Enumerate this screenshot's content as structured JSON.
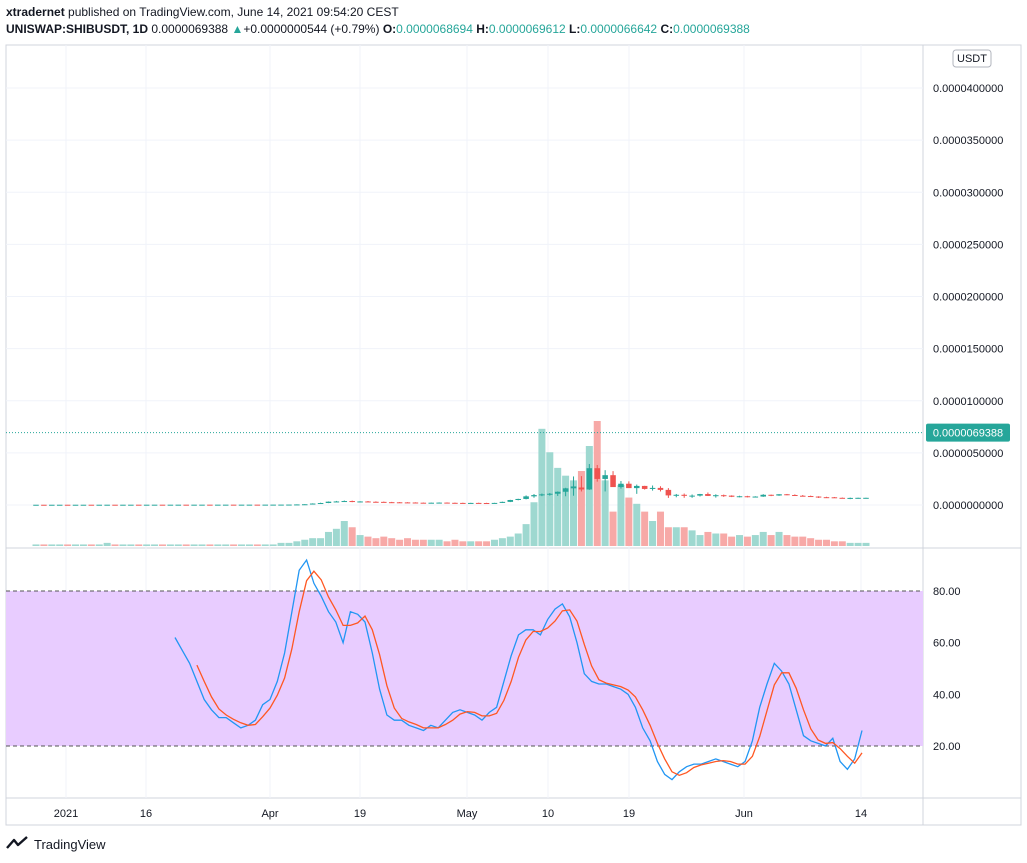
{
  "header": {
    "line1_author": "xtradernet",
    "line1_rest": " published on TradingView.com, June 14, 2021 09:54:20 CEST",
    "symbol": "UNISWAP:SHIBUSDT, 1D",
    "last": "0.0000069388",
    "change": "+0.0000000544 (+0.79%)",
    "o_label": "O:",
    "o": "0.0000068694",
    "h_label": "H:",
    "h": "0.0000069612",
    "l_label": "L:",
    "l": "0.0000066642",
    "c_label": "C:",
    "c": "0.0000069388"
  },
  "currency_badge": "USDT",
  "last_price_tag": "0.0000069388",
  "brand": "TradingView",
  "colors": {
    "up": "#26a69a",
    "down": "#ef5350",
    "vol_up": "#9ed8d0",
    "vol_down": "#f7a9a7",
    "rsi": "#2196f3",
    "signal": "#ff5722",
    "band": "#e8ccff"
  },
  "chart_data": [
    {
      "type": "candlestick",
      "title": "UNISWAP:SHIBUSDT, 1D",
      "y_ticks": [
        "0.0000400000",
        "0.0000350000",
        "0.0000300000",
        "0.0000250000",
        "0.0000200000",
        "0.0000150000",
        "0.0000100000",
        "0.0000050000",
        "0.0000000000"
      ],
      "ylim": [
        0,
        4e-05
      ],
      "x_ticks": [
        "2021",
        "16",
        "Apr",
        "19",
        "May",
        "10",
        "19",
        "Jun",
        "14"
      ],
      "candles_ohlc_e8": [
        [
          0.24,
          0.26,
          0.22,
          0.25
        ],
        [
          0.25,
          0.26,
          0.23,
          0.24
        ],
        [
          0.24,
          0.26,
          0.23,
          0.25
        ],
        [
          0.25,
          0.27,
          0.24,
          0.26
        ],
        [
          0.26,
          0.27,
          0.24,
          0.25
        ],
        [
          0.25,
          0.27,
          0.24,
          0.26
        ],
        [
          0.26,
          0.28,
          0.25,
          0.27
        ],
        [
          0.27,
          0.28,
          0.25,
          0.26
        ],
        [
          0.26,
          0.28,
          0.25,
          0.27
        ],
        [
          0.27,
          0.29,
          0.26,
          0.28
        ],
        [
          0.28,
          0.29,
          0.26,
          0.27
        ],
        [
          0.27,
          0.29,
          0.26,
          0.28
        ],
        [
          0.28,
          0.3,
          0.27,
          0.29
        ],
        [
          0.29,
          0.3,
          0.27,
          0.28
        ],
        [
          0.28,
          0.3,
          0.27,
          0.29
        ],
        [
          0.29,
          0.31,
          0.28,
          0.3
        ],
        [
          0.3,
          0.31,
          0.28,
          0.29
        ],
        [
          0.29,
          0.31,
          0.28,
          0.3
        ],
        [
          0.3,
          0.32,
          0.29,
          0.31
        ],
        [
          0.31,
          0.32,
          0.29,
          0.3
        ],
        [
          0.3,
          0.32,
          0.29,
          0.31
        ],
        [
          0.31,
          0.33,
          0.3,
          0.32
        ],
        [
          0.32,
          0.33,
          0.3,
          0.31
        ],
        [
          0.31,
          0.33,
          0.3,
          0.32
        ],
        [
          0.32,
          0.34,
          0.31,
          0.33
        ],
        [
          0.33,
          0.34,
          0.31,
          0.32
        ],
        [
          0.32,
          0.34,
          0.31,
          0.33
        ],
        [
          0.33,
          0.35,
          0.32,
          0.34
        ],
        [
          0.34,
          0.35,
          0.32,
          0.33
        ],
        [
          0.33,
          0.36,
          0.32,
          0.35
        ],
        [
          0.35,
          0.38,
          0.34,
          0.36
        ],
        [
          0.36,
          0.4,
          0.34,
          0.38
        ],
        [
          0.38,
          0.45,
          0.36,
          0.42
        ],
        [
          0.42,
          0.6,
          0.4,
          0.55
        ],
        [
          0.55,
          0.75,
          0.5,
          0.72
        ],
        [
          0.72,
          1.6,
          0.7,
          1.4
        ],
        [
          1.4,
          2.2,
          1.2,
          1.9
        ],
        [
          1.9,
          3.4,
          1.8,
          3.2
        ],
        [
          3.2,
          3.9,
          2.9,
          3.4
        ],
        [
          3.4,
          4.3,
          3.1,
          3.8
        ],
        [
          3.8,
          4.2,
          2.7,
          2.9
        ],
        [
          2.9,
          3.6,
          2.5,
          3.4
        ],
        [
          3.4,
          3.8,
          2.9,
          3.1
        ],
        [
          3.1,
          3.5,
          2.8,
          3.0
        ],
        [
          3.0,
          3.3,
          2.6,
          2.7
        ],
        [
          2.7,
          3.0,
          2.4,
          2.6
        ],
        [
          2.6,
          2.8,
          2.3,
          2.5
        ],
        [
          2.5,
          2.7,
          2.2,
          2.4
        ],
        [
          2.4,
          2.6,
          2.1,
          2.2
        ],
        [
          2.2,
          2.4,
          1.9,
          2.0
        ],
        [
          2.0,
          2.3,
          1.8,
          2.2
        ],
        [
          2.2,
          2.5,
          2.0,
          2.3
        ],
        [
          2.3,
          2.5,
          2.0,
          2.1
        ],
        [
          2.1,
          2.3,
          1.9,
          2.0
        ],
        [
          2.0,
          2.2,
          1.7,
          1.8
        ],
        [
          1.8,
          2.1,
          1.7,
          2.0
        ],
        [
          2.0,
          2.2,
          1.8,
          1.9
        ],
        [
          1.9,
          2.1,
          1.7,
          1.8
        ],
        [
          1.8,
          2.1,
          1.7,
          2.0
        ],
        [
          2.0,
          3.2,
          1.9,
          3.0
        ],
        [
          3.0,
          5.0,
          2.8,
          4.8
        ],
        [
          4.8,
          6.0,
          4.5,
          5.8
        ],
        [
          5.8,
          9.2,
          5.4,
          8.3
        ],
        [
          8.3,
          10.5,
          7.0,
          9.5
        ],
        [
          9.5,
          11.0,
          8.5,
          10.2
        ],
        [
          10.2,
          11.5,
          9.0,
          10.8
        ],
        [
          10.8,
          13.0,
          8.7,
          12.7
        ],
        [
          12.7,
          16.5,
          8.4,
          16.0
        ],
        [
          16.0,
          27.4,
          8.9,
          17.8
        ],
        [
          16.8,
          27.7,
          13.0,
          14.9
        ],
        [
          14.9,
          39.3,
          14.5,
          35.3
        ],
        [
          35.3,
          38.4,
          22.4,
          25.0
        ],
        [
          25.0,
          33.4,
          13.0,
          28.6
        ],
        [
          28.6,
          32.5,
          19.6,
          17.2
        ],
        [
          17.2,
          23.0,
          15.7,
          20.4
        ],
        [
          20.4,
          22.7,
          17.3,
          16.2
        ],
        [
          16.2,
          19.6,
          10.7,
          18.3
        ],
        [
          18.3,
          18.4,
          14.8,
          15.4
        ],
        [
          15.4,
          18.7,
          13.8,
          16.4
        ],
        [
          16.4,
          18.0,
          13.0,
          14.5
        ],
        [
          14.5,
          16.2,
          6.8,
          9.2
        ],
        [
          9.2,
          10.6,
          7.4,
          9.8
        ],
        [
          9.8,
          11.0,
          6.9,
          8.8
        ],
        [
          8.8,
          10.1,
          6.9,
          9.0
        ],
        [
          9.0,
          10.7,
          8.2,
          10.5
        ],
        [
          10.5,
          12.0,
          8.6,
          8.7
        ],
        [
          8.7,
          10.3,
          7.1,
          9.4
        ],
        [
          9.4,
          10.0,
          7.8,
          9.0
        ],
        [
          9.0,
          9.3,
          7.6,
          7.9
        ],
        [
          7.9,
          8.9,
          7.4,
          8.4
        ],
        [
          8.4,
          8.8,
          7.3,
          7.6
        ],
        [
          7.6,
          8.4,
          7.2,
          8.1
        ],
        [
          8.1,
          10.4,
          7.8,
          9.8
        ],
        [
          9.8,
          10.0,
          8.5,
          9.1
        ],
        [
          9.1,
          10.4,
          8.8,
          10.3
        ],
        [
          10.3,
          10.6,
          9.4,
          9.6
        ],
        [
          9.6,
          10.2,
          8.9,
          8.9
        ],
        [
          8.9,
          9.6,
          8.4,
          8.6
        ],
        [
          8.6,
          9.0,
          7.9,
          8.1
        ],
        [
          8.1,
          8.4,
          6.7,
          7.5
        ],
        [
          7.5,
          7.9,
          6.9,
          7.4
        ],
        [
          7.4,
          7.7,
          6.8,
          6.9
        ],
        [
          6.9,
          7.2,
          6.3,
          6.2
        ],
        [
          6.2,
          7.1,
          5.6,
          6.8
        ],
        [
          6.8,
          7.0,
          6.1,
          6.9
        ],
        [
          6.9,
          7.0,
          6.7,
          6.9
        ]
      ],
      "volume_e9_relative": [
        1,
        1,
        1,
        1,
        1,
        1,
        1,
        1,
        1,
        2,
        1,
        1,
        1,
        1,
        1,
        1,
        1,
        1,
        1,
        1,
        1,
        1,
        1,
        1,
        1,
        1,
        1,
        1,
        1,
        1,
        1,
        2,
        2,
        3,
        4,
        5,
        5,
        9,
        11,
        16,
        12,
        7,
        6,
        5,
        6,
        5,
        4,
        5,
        4,
        4,
        4,
        4,
        3,
        4,
        3,
        3,
        3,
        3,
        4,
        5,
        6,
        8,
        14,
        28,
        75,
        60,
        50,
        45,
        42,
        48,
        64,
        80,
        42,
        22,
        39,
        31,
        27,
        22,
        16,
        22,
        12,
        12,
        12,
        10,
        7,
        9,
        8,
        8,
        6,
        7,
        6,
        7,
        9,
        7,
        9,
        7,
        6,
        6,
        5,
        4,
        4,
        3,
        3,
        2,
        2,
        2
      ]
    },
    {
      "type": "line",
      "title": "",
      "y_ticks": [
        "80.00",
        "60.00",
        "40.00",
        "20.00"
      ],
      "ylim": [
        0,
        100
      ],
      "band": [
        20,
        80
      ],
      "series": [
        {
          "values": [
            62,
            57,
            52,
            45,
            38,
            34,
            31,
            31,
            29,
            27,
            28,
            30,
            36,
            38,
            45,
            56,
            72,
            88,
            92,
            83,
            78,
            72,
            68,
            60,
            72,
            71,
            68,
            56,
            42,
            32,
            30,
            30,
            28,
            27,
            26,
            28,
            27,
            30,
            33,
            34,
            33,
            32,
            30,
            33,
            35,
            45,
            55,
            63,
            65,
            65,
            63,
            69,
            73,
            75,
            70,
            60,
            48,
            45,
            44,
            44,
            43,
            42,
            40,
            35,
            27,
            22,
            14,
            9,
            7,
            10,
            12,
            13,
            13,
            14,
            15,
            14,
            13,
            12,
            14,
            22,
            35,
            44,
            52,
            49,
            44,
            34,
            24,
            22,
            21,
            20,
            23,
            14,
            11,
            15,
            26
          ]
        },
        {
          "values": [
            null,
            null,
            null,
            null,
            null,
            null,
            null,
            null,
            null,
            null,
            null,
            null,
            null,
            null,
            null,
            null,
            null,
            null,
            null,
            null,
            null,
            null,
            null,
            null,
            null,
            null,
            null,
            null,
            null,
            null,
            null,
            null,
            null,
            null,
            null,
            null,
            null,
            null,
            null,
            null,
            null,
            null,
            null,
            null,
            null,
            null,
            null,
            null,
            null,
            null,
            null,
            null,
            null,
            null,
            null,
            null,
            null,
            null,
            null,
            null,
            null,
            null,
            null,
            null,
            null,
            null,
            null,
            null,
            null,
            null,
            null,
            null,
            null,
            null,
            null,
            null,
            null,
            null,
            null,
            null,
            null,
            null,
            null,
            null,
            null,
            null,
            null,
            null,
            null,
            null,
            null,
            null,
            null,
            null,
            null
          ]
        }
      ]
    }
  ]
}
